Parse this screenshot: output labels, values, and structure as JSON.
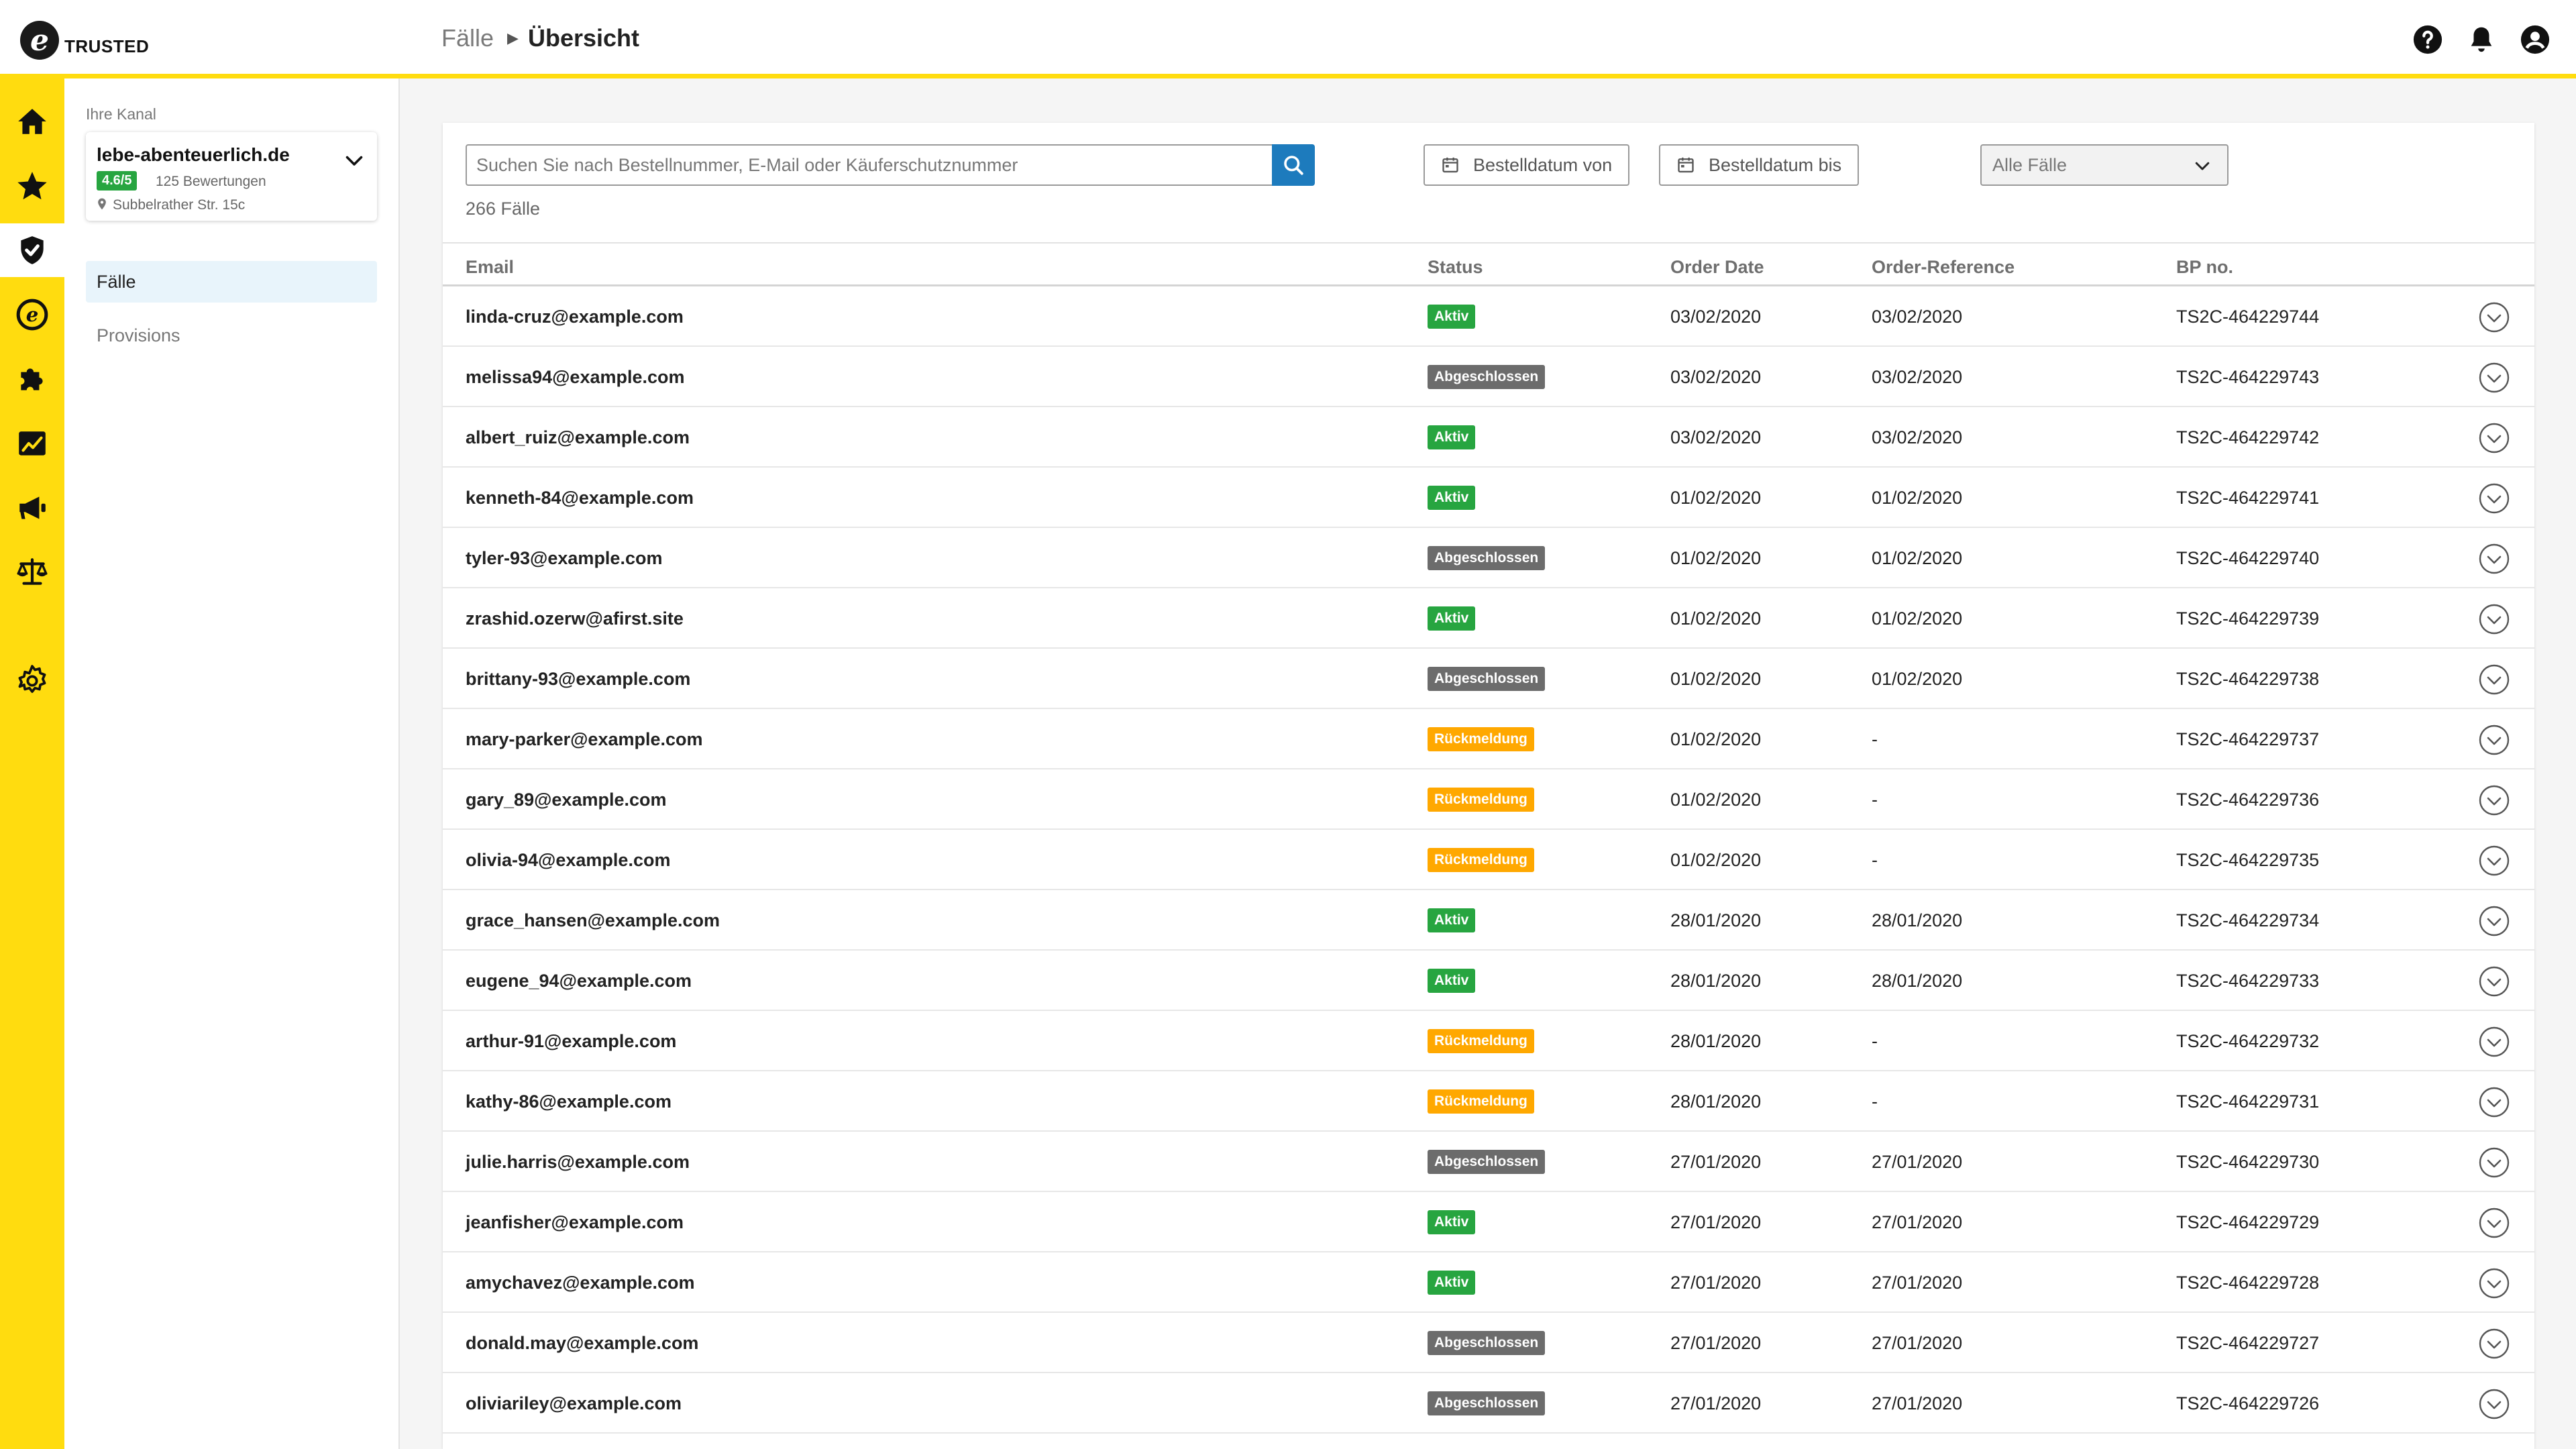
{
  "header": {
    "logo_text": "TRUSTED",
    "logo_mark": "e",
    "breadcrumb": {
      "parent": "Fälle",
      "current": "Übersicht"
    },
    "icons": [
      "help-icon",
      "bell-icon",
      "account-icon"
    ]
  },
  "rail": {
    "items": [
      {
        "icon": "home-icon",
        "active": false
      },
      {
        "icon": "star-icon",
        "active": false
      },
      {
        "icon": "shield-check-icon",
        "active": true
      },
      {
        "icon": "trusted-e-icon",
        "active": false
      },
      {
        "icon": "puzzle-icon",
        "active": false
      },
      {
        "icon": "analytics-icon",
        "active": false
      },
      {
        "icon": "megaphone-icon",
        "active": false
      },
      {
        "icon": "scale-icon",
        "active": false
      },
      {
        "icon": "gear-icon",
        "active": false
      }
    ],
    "color": "#ffdc0f"
  },
  "sidebar": {
    "channel_label": "Ihre Kanal",
    "channel": {
      "name": "lebe-abenteuerlich.de",
      "rating": "4.6/5",
      "reviews": "125 Bewertungen",
      "address": "Subbelrather Str. 15c"
    },
    "items": [
      {
        "label": "Fälle",
        "active": true
      },
      {
        "label": "Provisions",
        "active": false
      }
    ]
  },
  "toolbar": {
    "search_placeholder": "Suchen Sie nach Bestellnummer, E-Mail oder Käuferschutznummer",
    "date_from": "Bestelldatum von",
    "date_to": "Bestelldatum bis",
    "filter_value": "Alle Fälle",
    "count": "266 Fälle"
  },
  "table": {
    "columns": {
      "email": "Email",
      "status": "Status",
      "order_date": "Order Date",
      "order_ref": "Order-Reference",
      "bp": "BP no."
    },
    "rows": [
      {
        "email": "linda-cruz@example.com",
        "status": "Aktiv",
        "status_type": "aktiv",
        "date": "03/02/2020",
        "ref": "03/02/2020",
        "bp": "TS2C-464229744"
      },
      {
        "email": "melissa94@example.com",
        "status": "Abgeschlossen",
        "status_type": "abgeschlossen",
        "date": "03/02/2020",
        "ref": "03/02/2020",
        "bp": "TS2C-464229743"
      },
      {
        "email": "albert_ruiz@example.com",
        "status": "Aktiv",
        "status_type": "aktiv",
        "date": "03/02/2020",
        "ref": "03/02/2020",
        "bp": "TS2C-464229742"
      },
      {
        "email": "kenneth-84@example.com",
        "status": "Aktiv",
        "status_type": "aktiv",
        "date": "01/02/2020",
        "ref": "01/02/2020",
        "bp": "TS2C-464229741"
      },
      {
        "email": "tyler-93@example.com",
        "status": "Abgeschlossen",
        "status_type": "abgeschlossen",
        "date": "01/02/2020",
        "ref": "01/02/2020",
        "bp": "TS2C-464229740"
      },
      {
        "email": "zrashid.ozerw@afirst.site",
        "status": "Aktiv",
        "status_type": "aktiv",
        "date": "01/02/2020",
        "ref": "01/02/2020",
        "bp": "TS2C-464229739"
      },
      {
        "email": "brittany-93@example.com",
        "status": "Abgeschlossen",
        "status_type": "abgeschlossen",
        "date": "01/02/2020",
        "ref": "01/02/2020",
        "bp": "TS2C-464229738"
      },
      {
        "email": "mary-parker@example.com",
        "status": "Rückmeldung",
        "status_type": "rueckmeldung",
        "date": "01/02/2020",
        "ref": "-",
        "bp": "TS2C-464229737"
      },
      {
        "email": "gary_89@example.com",
        "status": "Rückmeldung",
        "status_type": "rueckmeldung",
        "date": "01/02/2020",
        "ref": "-",
        "bp": "TS2C-464229736"
      },
      {
        "email": "olivia-94@example.com",
        "status": "Rückmeldung",
        "status_type": "rueckmeldung",
        "date": "01/02/2020",
        "ref": "-",
        "bp": "TS2C-464229735"
      },
      {
        "email": "grace_hansen@example.com",
        "status": "Aktiv",
        "status_type": "aktiv",
        "date": "28/01/2020",
        "ref": "28/01/2020",
        "bp": "TS2C-464229734"
      },
      {
        "email": "eugene_94@example.com",
        "status": "Aktiv",
        "status_type": "aktiv",
        "date": "28/01/2020",
        "ref": "28/01/2020",
        "bp": "TS2C-464229733"
      },
      {
        "email": "arthur-91@example.com",
        "status": "Rückmeldung",
        "status_type": "rueckmeldung",
        "date": "28/01/2020",
        "ref": "-",
        "bp": "TS2C-464229732"
      },
      {
        "email": "kathy-86@example.com",
        "status": "Rückmeldung",
        "status_type": "rueckmeldung",
        "date": "28/01/2020",
        "ref": "-",
        "bp": "TS2C-464229731"
      },
      {
        "email": "julie.harris@example.com",
        "status": "Abgeschlossen",
        "status_type": "abgeschlossen",
        "date": "27/01/2020",
        "ref": "27/01/2020",
        "bp": "TS2C-464229730"
      },
      {
        "email": "jeanfisher@example.com",
        "status": "Aktiv",
        "status_type": "aktiv",
        "date": "27/01/2020",
        "ref": "27/01/2020",
        "bp": "TS2C-464229729"
      },
      {
        "email": "amychavez@example.com",
        "status": "Aktiv",
        "status_type": "aktiv",
        "date": "27/01/2020",
        "ref": "27/01/2020",
        "bp": "TS2C-464229728"
      },
      {
        "email": "donald.may@example.com",
        "status": "Abgeschlossen",
        "status_type": "abgeschlossen",
        "date": "27/01/2020",
        "ref": "27/01/2020",
        "bp": "TS2C-464229727"
      },
      {
        "email": "oliviariley@example.com",
        "status": "Abgeschlossen",
        "status_type": "abgeschlossen",
        "date": "27/01/2020",
        "ref": "27/01/2020",
        "bp": "TS2C-464229726"
      }
    ]
  },
  "colors": {
    "accent": "#ffdc0f",
    "aktiv": "#27a540",
    "abgeschlossen": "#6c6c6c",
    "rueckmeldung": "#ffa800",
    "search_button": "#1d7bbd"
  }
}
